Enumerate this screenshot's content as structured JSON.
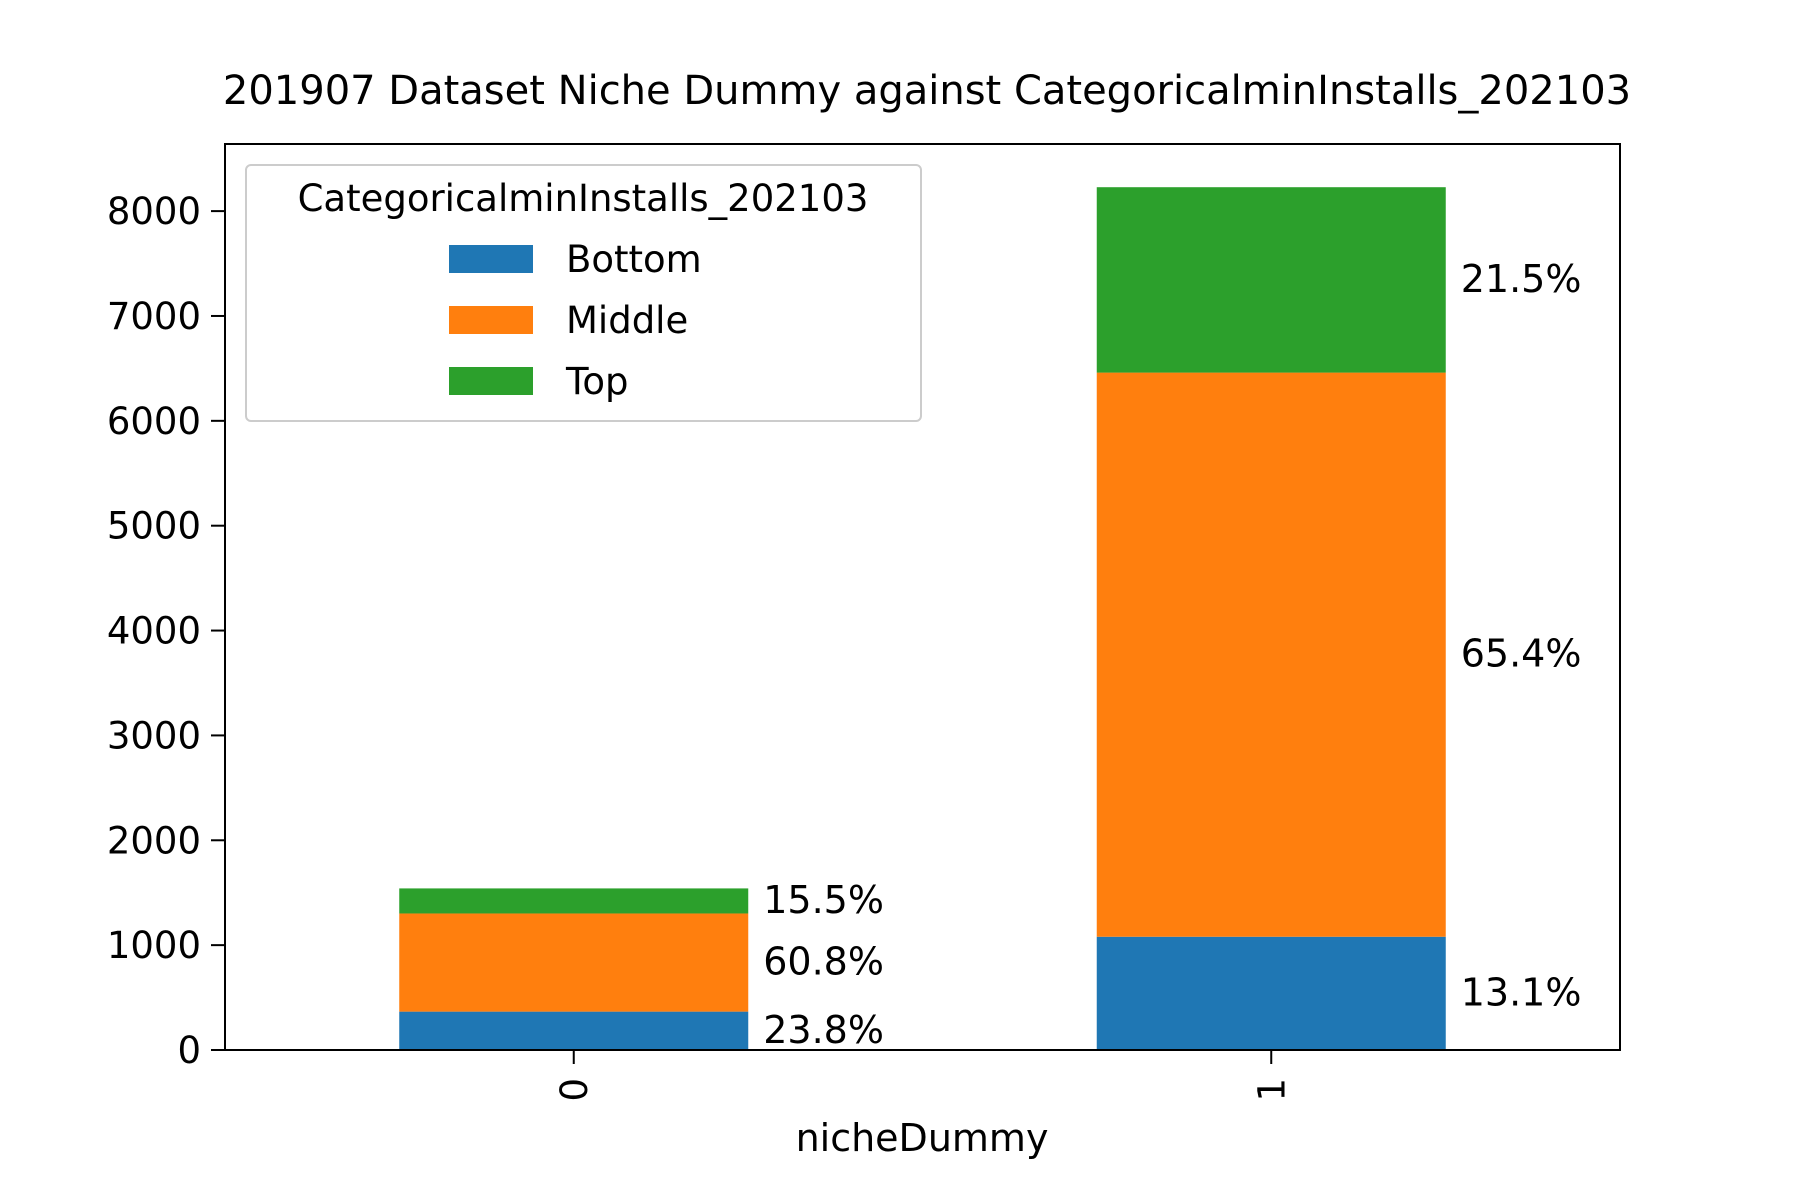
{
  "chart_data": {
    "type": "bar",
    "stacked": true,
    "title": "201907 Dataset Niche Dummy against CategoricalminInstalls_202103",
    "xlabel": "nicheDummy",
    "ylabel": "",
    "categories": [
      "0",
      "1"
    ],
    "ylim": [
      0,
      8640
    ],
    "yticks": [
      0,
      1000,
      2000,
      3000,
      4000,
      5000,
      6000,
      7000,
      8000
    ],
    "legend": {
      "title": "CategoricalminInstalls_202103",
      "position": "upper-left"
    },
    "grid": false,
    "series": [
      {
        "name": "Bottom",
        "color": "#1f77b4",
        "values": [
          366,
          1080
        ],
        "labels": [
          "23.8%",
          "13.1%"
        ]
      },
      {
        "name": "Middle",
        "color": "#ff7f0e",
        "values": [
          936,
          5380
        ],
        "labels": [
          "60.8%",
          "65.4%"
        ]
      },
      {
        "name": "Top",
        "color": "#2ca02c",
        "values": [
          239,
          1768
        ],
        "labels": [
          "15.5%",
          "21.5%"
        ]
      }
    ]
  }
}
